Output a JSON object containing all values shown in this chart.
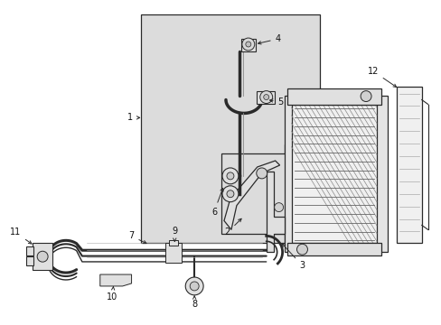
{
  "bg_color": "#ffffff",
  "line_color": "#2a2a2a",
  "shade_color": "#dcdcdc",
  "shade_color2": "#e8e8e8",
  "label_color": "#111111",
  "figsize": [
    4.89,
    3.6
  ],
  "dpi": 100
}
